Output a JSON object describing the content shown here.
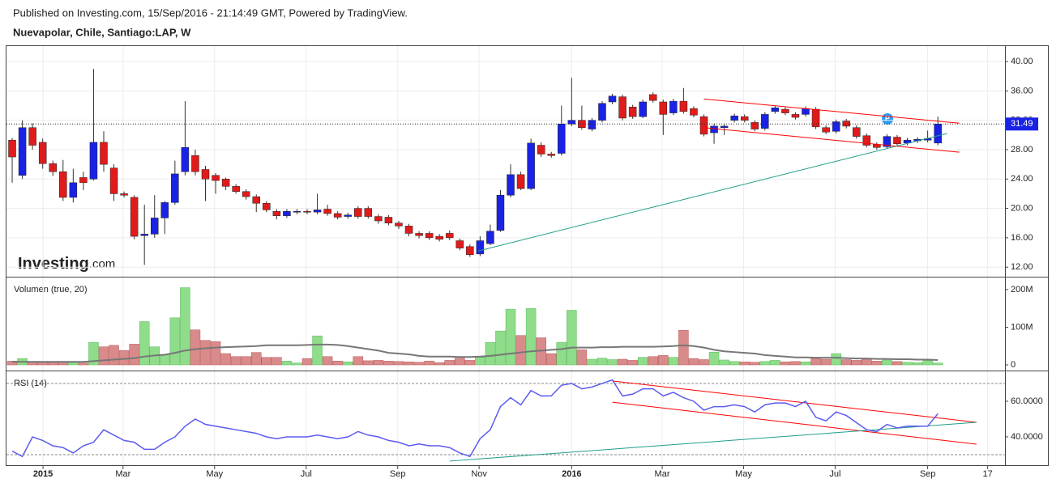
{
  "header": {
    "published": "Published on Investing.com, 15/Sep/2016 - 21:14:49 GMT, Powered by TradingView.",
    "symbol": "Nuevapolar, Chile, Santiago:LAP, W"
  },
  "logo": {
    "name": "Investing",
    "suffix": ".com"
  },
  "chart_data": [
    {
      "type": "candlestick",
      "up_color": "#1a22e6",
      "down_color": "#e01b1b",
      "open": [
        29.3,
        24.5,
        31.0,
        29.0,
        26.1,
        25.0,
        21.5,
        24.2,
        24.0,
        29.0,
        25.5,
        22.0,
        21.5,
        16.3,
        16.5,
        18.7,
        20.8,
        25.0,
        27.2,
        25.3,
        24.5,
        24.0,
        23.0,
        22.3,
        21.6,
        20.7,
        19.6,
        19.0,
        19.5,
        19.6,
        19.5,
        19.9,
        19.3,
        18.9,
        20.0,
        20.0,
        18.9,
        18.8,
        18.0,
        17.6,
        16.6,
        16.6,
        16.2,
        16.6,
        15.6,
        14.8,
        13.8,
        15.2,
        17.0,
        21.8,
        24.6,
        22.7,
        28.6,
        27.4,
        27.5,
        31.5,
        32.0,
        30.8,
        32.0,
        34.5,
        35.2,
        33.8,
        32.5,
        35.5,
        34.5,
        33.0,
        34.6,
        33.6,
        32.5,
        30.3,
        31.0,
        32.0,
        32.5,
        31.7,
        30.9,
        33.2,
        33.5,
        32.8,
        32.8,
        33.5,
        31.0,
        30.5,
        31.9,
        31.0,
        29.9,
        28.7,
        28.4,
        29.7,
        28.9,
        29.2,
        29.3,
        28.9
      ],
      "high": [
        29.6,
        32.0,
        31.6,
        29.5,
        26.5,
        26.6,
        25.4,
        25.0,
        39.0,
        30.5,
        26.0,
        22.3,
        21.8,
        20.5,
        21.8,
        21.0,
        26.5,
        34.6,
        28.0,
        25.8,
        24.8,
        24.2,
        23.3,
        22.6,
        21.9,
        21.0,
        19.9,
        19.9,
        19.9,
        19.9,
        22.0,
        20.5,
        19.6,
        19.4,
        20.3,
        20.3,
        19.2,
        19.1,
        18.3,
        17.9,
        16.9,
        16.9,
        16.5,
        17.0,
        15.9,
        15.1,
        16.2,
        17.8,
        22.5,
        26.0,
        25.0,
        29.5,
        29.0,
        27.7,
        34.0,
        37.8,
        34.0,
        32.3,
        34.6,
        35.6,
        35.5,
        34.1,
        34.8,
        35.8,
        34.8,
        34.9,
        36.4,
        33.9,
        32.8,
        31.5,
        31.5,
        32.9,
        32.8,
        32.0,
        33.1,
        34.0,
        33.8,
        33.1,
        33.9,
        33.8,
        31.3,
        32.1,
        32.2,
        31.3,
        30.2,
        29.0,
        30.1,
        30.0,
        29.6,
        29.7,
        30.6,
        32.5
      ],
      "low": [
        23.5,
        24.0,
        28.0,
        25.4,
        24.4,
        21.0,
        20.8,
        22.5,
        23.8,
        25.0,
        21.0,
        21.5,
        15.8,
        12.3,
        16.0,
        16.5,
        20.5,
        24.5,
        24.5,
        21.0,
        22.0,
        22.5,
        22.0,
        21.2,
        19.5,
        19.5,
        18.5,
        18.7,
        19.2,
        19.2,
        19.2,
        19.0,
        18.5,
        18.6,
        18.6,
        18.6,
        17.9,
        17.7,
        17.2,
        16.2,
        15.9,
        15.7,
        15.5,
        15.7,
        14.3,
        13.4,
        13.5,
        15.0,
        16.8,
        21.5,
        22.5,
        22.5,
        27.0,
        26.9,
        27.2,
        31.2,
        30.7,
        30.5,
        31.7,
        34.2,
        32.0,
        32.2,
        32.3,
        34.4,
        30.0,
        32.7,
        32.9,
        32.4,
        29.8,
        28.8,
        30.0,
        31.7,
        31.7,
        30.5,
        30.6,
        32.9,
        32.7,
        32.1,
        32.5,
        30.8,
        30.1,
        30.2,
        30.9,
        29.5,
        28.3,
        28.0,
        28.1,
        28.5,
        28.6,
        28.9,
        29.0,
        28.6
      ],
      "close": [
        27.0,
        31.0,
        28.6,
        26.1,
        25.0,
        21.5,
        23.5,
        23.5,
        29.0,
        26.0,
        22.0,
        21.8,
        16.2,
        16.5,
        18.7,
        20.8,
        24.7,
        28.3,
        25.0,
        24.0,
        23.8,
        23.0,
        22.3,
        21.6,
        20.7,
        19.8,
        19.0,
        19.6,
        19.6,
        19.5,
        19.8,
        19.3,
        18.8,
        19.1,
        18.9,
        18.9,
        18.3,
        18.0,
        17.6,
        16.6,
        16.3,
        16.0,
        15.8,
        16.0,
        14.6,
        13.7,
        15.6,
        16.9,
        21.8,
        24.6,
        22.7,
        28.9,
        27.4,
        27.2,
        31.5,
        32.0,
        31.0,
        32.0,
        34.3,
        35.3,
        32.3,
        32.5,
        34.5,
        34.7,
        32.8,
        34.6,
        33.2,
        32.7,
        30.1,
        31.2,
        31.2,
        32.6,
        32.0,
        30.8,
        32.8,
        33.7,
        33.0,
        32.4,
        33.6,
        31.1,
        30.4,
        31.8,
        31.2,
        29.8,
        28.6,
        28.3,
        29.8,
        28.8,
        29.3,
        29.4,
        29.5,
        31.49
      ],
      "last_price": 31.49,
      "last_price_color": "#1a22e6",
      "trendlines": [
        {
          "x": [
            68,
            93.1
          ],
          "y": [
            34.9,
            31.6
          ],
          "color": "#ff0000"
        },
        {
          "x": [
            68,
            93.1
          ],
          "y": [
            31.0,
            27.65
          ],
          "color": "#ff0000"
        },
        {
          "x": [
            45.8,
            91.9
          ],
          "y": [
            14.2,
            30.2
          ],
          "color": "#1f9e89"
        }
      ],
      "xlim": [
        -0.56,
        97.6
      ],
      "xticks": [
        {
          "value": 3.03,
          "label": "2015"
        },
        {
          "value": 10.9,
          "label": "Mar"
        },
        {
          "value": 19.9,
          "label": "May"
        },
        {
          "value": 28.9,
          "label": "Jul"
        },
        {
          "value": 37.9,
          "label": "Sep"
        },
        {
          "value": 45.9,
          "label": "Nov"
        },
        {
          "value": 55.0,
          "label": "2016"
        },
        {
          "value": 63.9,
          "label": "Mar"
        },
        {
          "value": 71.9,
          "label": "May"
        },
        {
          "value": 80.9,
          "label": "Jul"
        },
        {
          "value": 90.0,
          "label": "Sep"
        },
        {
          "value": 95.9,
          "label": "17"
        }
      ],
      "ylim": [
        10.7,
        42.1
      ],
      "yticks": [
        {
          "value": 12,
          "label": "12.00"
        },
        {
          "value": 16,
          "label": "16.00"
        },
        {
          "value": 20,
          "label": "20.00"
        },
        {
          "value": 24,
          "label": "24.00"
        },
        {
          "value": 28,
          "label": "28.00"
        },
        {
          "value": 32,
          "label": "32.00"
        },
        {
          "value": 36,
          "label": "36.00"
        },
        {
          "value": 40,
          "label": "40.00"
        }
      ],
      "grid": true
    },
    {
      "type": "bar",
      "title": "Volumen (true, 20)",
      "up_color": "#8fdc8a",
      "down_color": "#d98b8b",
      "average_color": "#777777",
      "values": [
        10000000,
        17000000,
        9000000,
        8000000,
        7000000,
        9000000,
        8000000,
        5000000,
        60000000,
        48000000,
        52000000,
        38000000,
        55000000,
        115000000,
        48000000,
        28000000,
        125000000,
        205000000,
        93000000,
        65000000,
        62000000,
        30000000,
        22000000,
        22000000,
        33000000,
        20000000,
        20000000,
        10000000,
        5000000,
        17000000,
        77000000,
        22000000,
        10000000,
        8000000,
        22000000,
        11000000,
        12000000,
        10000000,
        9000000,
        8000000,
        7000000,
        10000000,
        6000000,
        12000000,
        18000000,
        12000000,
        20000000,
        60000000,
        90000000,
        148000000,
        78000000,
        150000000,
        72000000,
        30000000,
        60000000,
        145000000,
        40000000,
        15000000,
        18000000,
        14000000,
        15000000,
        12000000,
        20000000,
        22000000,
        25000000,
        20000000,
        92000000,
        17000000,
        14000000,
        34000000,
        13000000,
        9000000,
        8000000,
        7000000,
        9000000,
        12000000,
        8000000,
        9000000,
        8000000,
        17000000,
        15000000,
        30000000,
        14000000,
        12000000,
        15000000,
        10000000,
        13000000,
        9000000,
        7000000,
        6000000,
        11000000,
        5000000
      ],
      "average": [
        8000000,
        8000000,
        8000000,
        8000000,
        8000000,
        8000000,
        8000000,
        8000000,
        10000000,
        12000000,
        14000000,
        16000000,
        18000000,
        22000000,
        25000000,
        27000000,
        32000000,
        38000000,
        42000000,
        44000000,
        46000000,
        47000000,
        48000000,
        49000000,
        50000000,
        52000000,
        52000000,
        52000000,
        52000000,
        53000000,
        54000000,
        54000000,
        53000000,
        50000000,
        46000000,
        42000000,
        38000000,
        32000000,
        30000000,
        28000000,
        24000000,
        22000000,
        22000000,
        22000000,
        21000000,
        21000000,
        22000000,
        24000000,
        27000000,
        30000000,
        33000000,
        36000000,
        38000000,
        40000000,
        42000000,
        46000000,
        46000000,
        46000000,
        47000000,
        47000000,
        48000000,
        48000000,
        48000000,
        48000000,
        49000000,
        50000000,
        52000000,
        50000000,
        46000000,
        40000000,
        36000000,
        34000000,
        32000000,
        30000000,
        26000000,
        24000000,
        22000000,
        20000000,
        20000000,
        19000000,
        19000000,
        19000000,
        18000000,
        17000000,
        17000000,
        16000000,
        16000000,
        15000000,
        15000000,
        14000000,
        14000000,
        13000000
      ],
      "ylim": [
        -15000000,
        232000000
      ],
      "yticks": [
        0,
        {
          "value": 100000000,
          "label": "100M"
        },
        {
          "value": 200000000,
          "label": "200M"
        }
      ]
    },
    {
      "type": "line",
      "title": "RSI (14)",
      "color": "#5b5bf0",
      "values": [
        32,
        29,
        40,
        38,
        35,
        34,
        31,
        35,
        37,
        44,
        41,
        38,
        37,
        33,
        33,
        37,
        40,
        46,
        50,
        47,
        46,
        45,
        44,
        43,
        42,
        40,
        39,
        40,
        40,
        40,
        41,
        40,
        39,
        40,
        43,
        41,
        40,
        38,
        37,
        35,
        36,
        35,
        35,
        34,
        31,
        29,
        39,
        44,
        57,
        62,
        58,
        66,
        63,
        63,
        69,
        70,
        67,
        68,
        70,
        72,
        63,
        64,
        67,
        67,
        63,
        65,
        62,
        60,
        55,
        57,
        57,
        58,
        57,
        54,
        58,
        59,
        59,
        57,
        60,
        51,
        49,
        54,
        52,
        48,
        44,
        43,
        47,
        45,
        46,
        46,
        46,
        53
      ],
      "levels": [
        70,
        30
      ],
      "trendlines": [
        {
          "x": [
            59,
            94.8
          ],
          "y": [
            71.4,
            48.2
          ],
          "color": "#ff0000"
        },
        {
          "x": [
            59,
            94.8
          ],
          "y": [
            59.5,
            35.9
          ],
          "color": "#ff0000"
        },
        {
          "x": [
            43,
            94.8
          ],
          "y": [
            26.4,
            48.2
          ],
          "color": "#1f9e89"
        }
      ],
      "ylim": [
        24.1,
        76.8
      ],
      "yticks": [
        {
          "value": 40,
          "label": "40.0000"
        },
        {
          "value": 60,
          "label": "60.0000"
        }
      ]
    }
  ]
}
